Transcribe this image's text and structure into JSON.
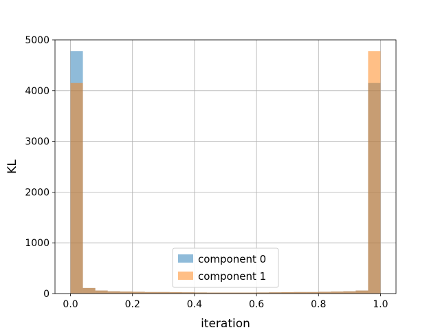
{
  "chart_data": {
    "type": "bar",
    "subtype": "overlapping-histogram",
    "xlabel": "iteration",
    "ylabel": "KL",
    "xlim": [
      -0.05,
      1.05
    ],
    "ylim": [
      0,
      5000
    ],
    "xticks": [
      0.0,
      0.2,
      0.4,
      0.6,
      0.8,
      1.0
    ],
    "xtick_labels": [
      "0.0",
      "0.2",
      "0.4",
      "0.6",
      "0.8",
      "1.0"
    ],
    "yticks": [
      0,
      1000,
      2000,
      3000,
      4000,
      5000
    ],
    "ytick_labels": [
      "0",
      "1000",
      "2000",
      "3000",
      "4000",
      "5000"
    ],
    "grid": true,
    "legend_position": "lower-center",
    "bin_edges": [
      0.0,
      0.04,
      0.08,
      0.12,
      0.16,
      0.2,
      0.24,
      0.28,
      0.32,
      0.36,
      0.4,
      0.44,
      0.48,
      0.52,
      0.56,
      0.6,
      0.64,
      0.68,
      0.72,
      0.76,
      0.8,
      0.84,
      0.88,
      0.92,
      0.96,
      1.0
    ],
    "series": [
      {
        "name": "component 0",
        "color": "#1f77b4",
        "alpha": 0.5,
        "values": [
          4780,
          110,
          60,
          45,
          40,
          35,
          30,
          30,
          28,
          25,
          22,
          20,
          20,
          20,
          20,
          22,
          25,
          28,
          30,
          30,
          35,
          40,
          45,
          60,
          4150
        ]
      },
      {
        "name": "component 1",
        "color": "#ff7f0e",
        "alpha": 0.5,
        "values": [
          4150,
          110,
          60,
          45,
          40,
          35,
          30,
          30,
          28,
          25,
          22,
          20,
          20,
          20,
          20,
          22,
          25,
          28,
          30,
          30,
          35,
          40,
          45,
          60,
          4780
        ]
      }
    ]
  }
}
